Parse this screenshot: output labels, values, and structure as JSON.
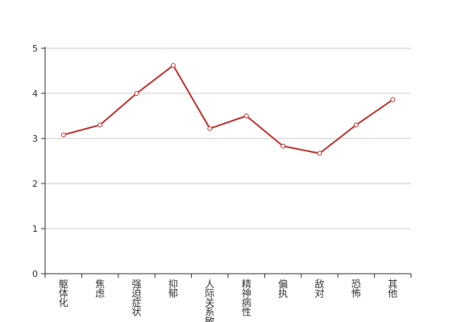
{
  "chart_data": {
    "type": "line",
    "title": "",
    "xlabel": "",
    "ylabel": "",
    "categories": [
      "躯体化",
      "焦虑",
      "强迫症状",
      "抑郁",
      "人际关系敏感",
      "精神病性",
      "偏执",
      "敌对",
      "恐怖",
      "其他"
    ],
    "series": [
      {
        "values": [
          3.08,
          3.3,
          4.0,
          4.62,
          3.22,
          3.5,
          2.83,
          2.67,
          3.3,
          3.86
        ]
      }
    ],
    "ylim": [
      0,
      5
    ],
    "yticks": [
      0,
      1,
      2,
      3,
      4,
      5
    ],
    "grid": true,
    "legend": "none",
    "colors": {
      "line": "#c23531",
      "axis": "#333333",
      "grid": "#cccccc"
    }
  }
}
